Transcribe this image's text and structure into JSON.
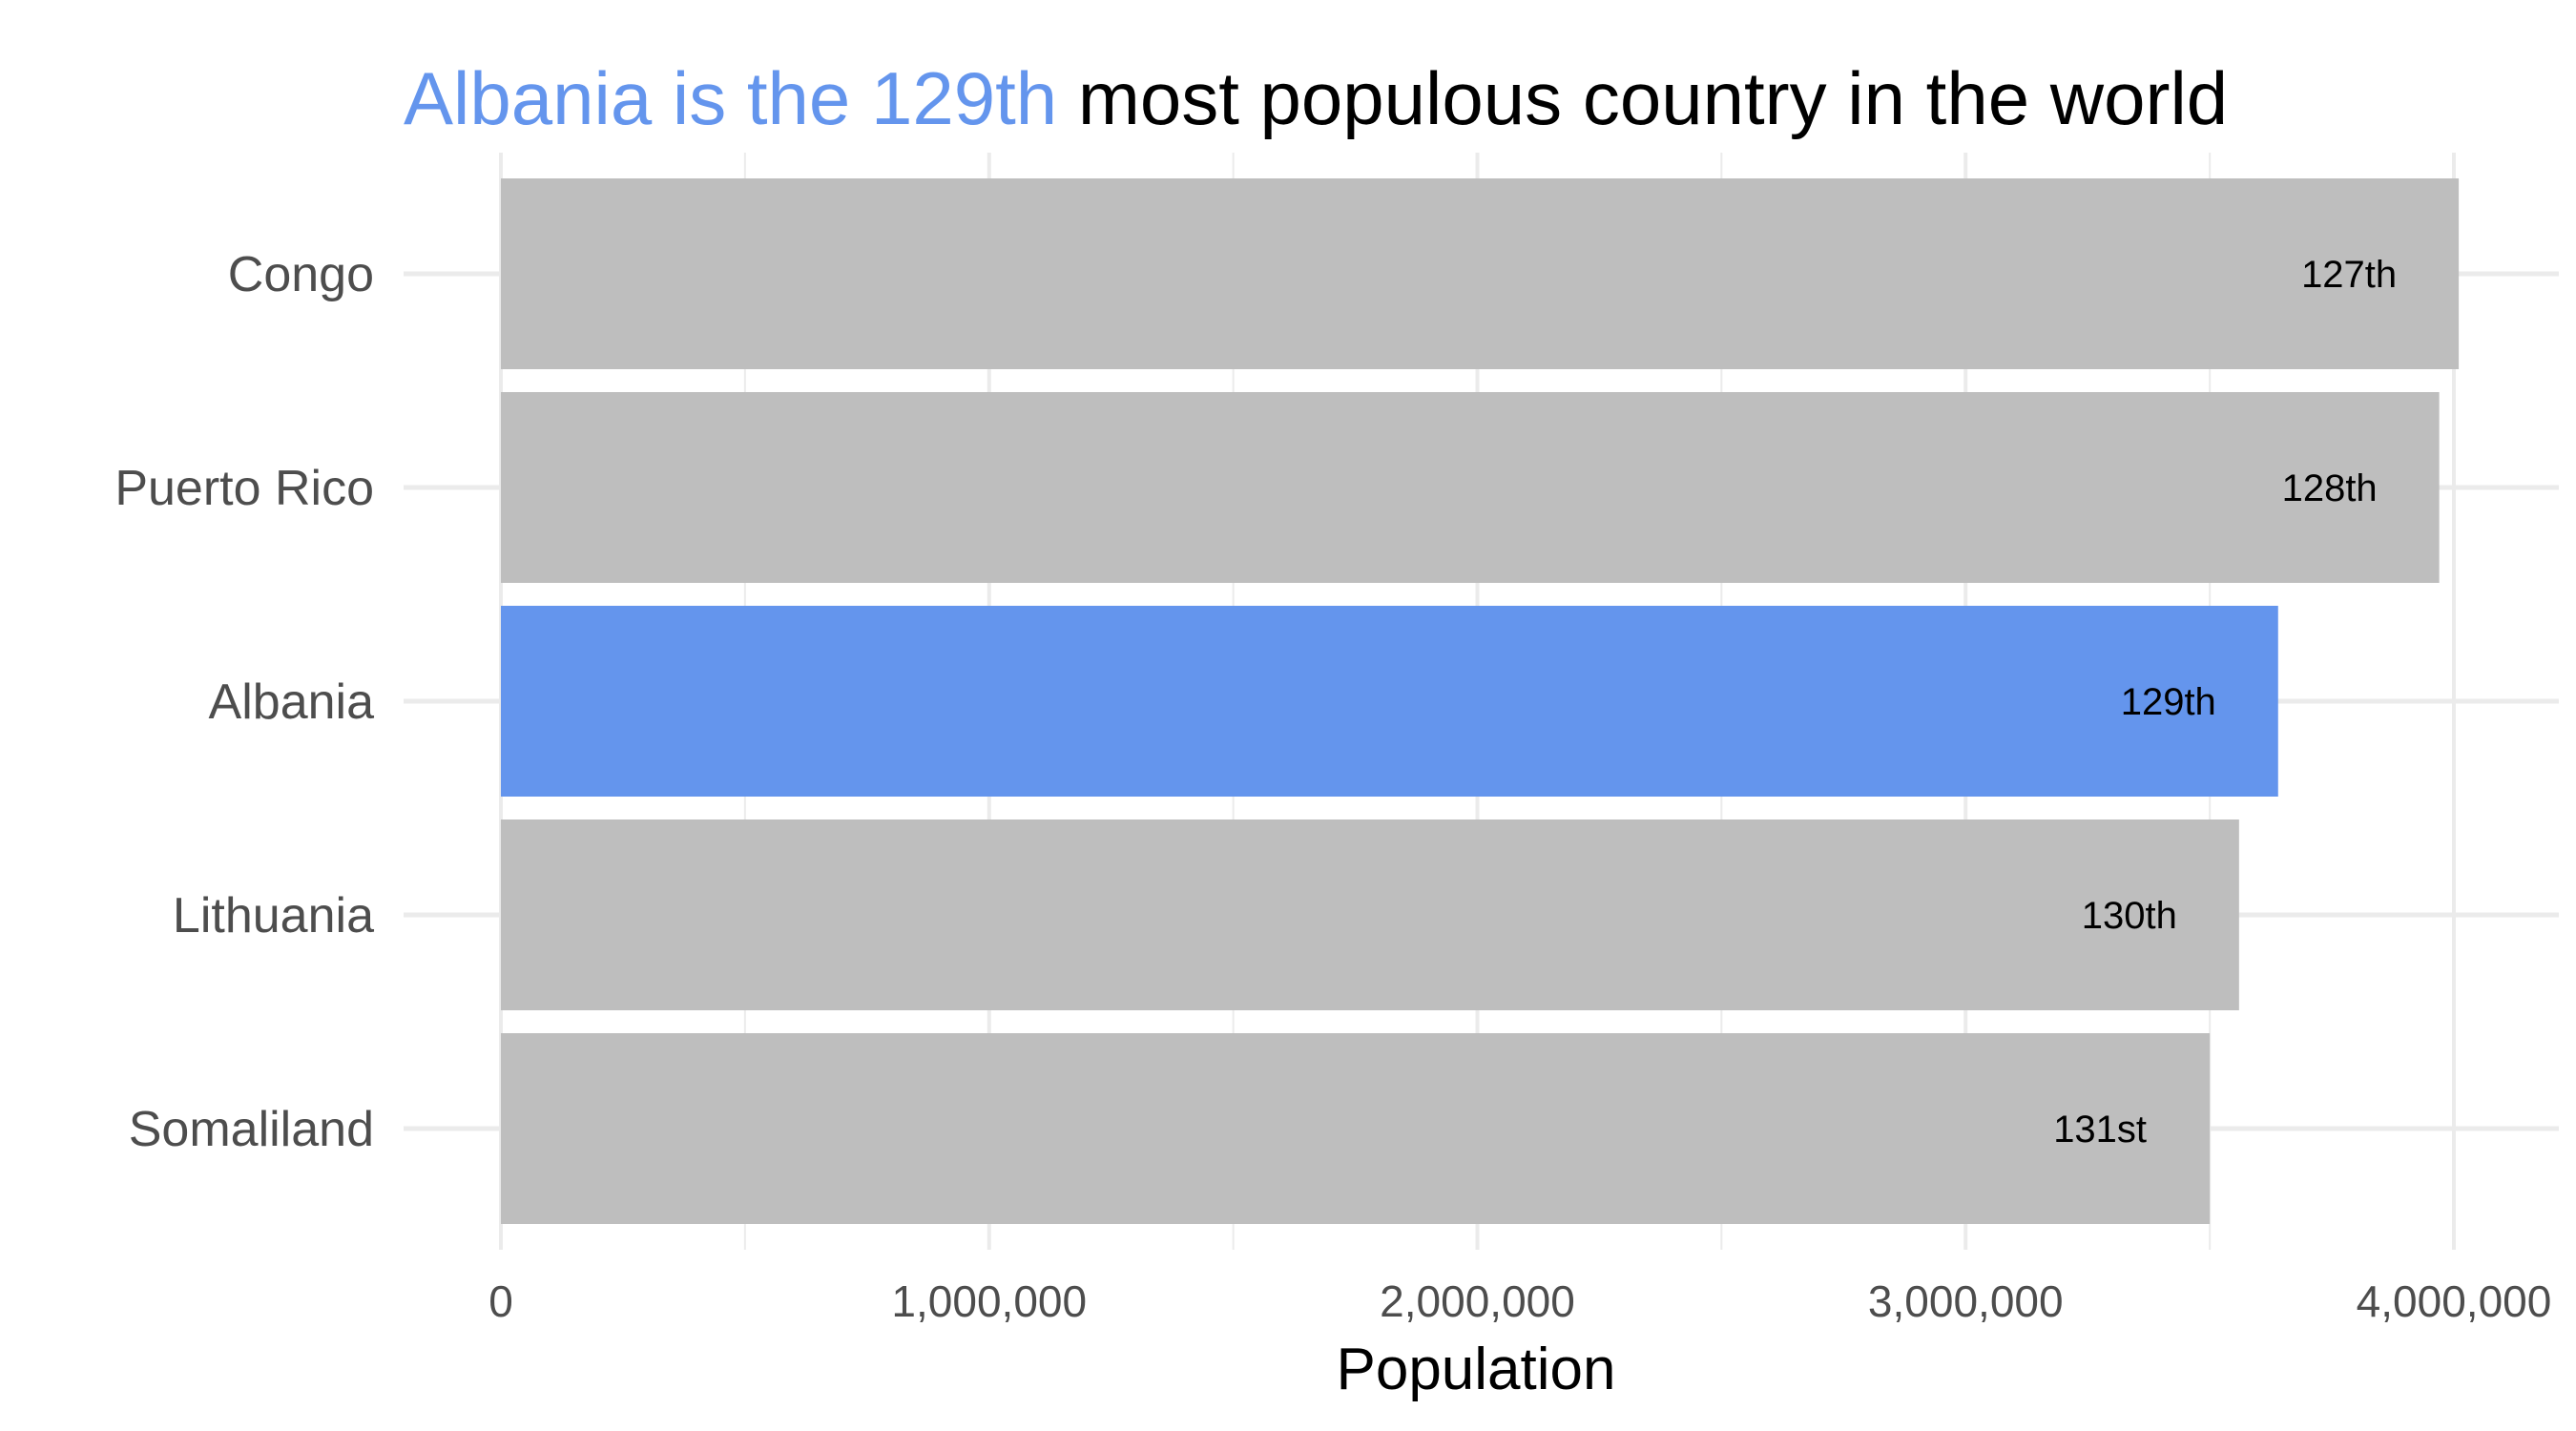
{
  "chart_data": {
    "type": "bar",
    "orientation": "horizontal",
    "title": {
      "highlight": "Albania is the 129th",
      "rest": " most populous country in the world"
    },
    "xlabel": "Population",
    "ylabel": "",
    "categories": [
      "Congo",
      "Puerto Rico",
      "Albania",
      "Lithuania",
      "Somaliland"
    ],
    "values": [
      4010000,
      3970000,
      3640000,
      3560000,
      3500000
    ],
    "data_labels": [
      "127th",
      "128th",
      "129th",
      "130th",
      "131st"
    ],
    "highlight_category": "Albania",
    "xlim": [
      0,
      4000000
    ],
    "x_ticks": [
      0,
      1000000,
      2000000,
      3000000,
      4000000
    ],
    "x_tick_labels": [
      "0",
      "1,000,000",
      "2,000,000",
      "3,000,000",
      "4,000,000"
    ],
    "grid": true,
    "legend": "none",
    "colors": {
      "bar": "#bebebe",
      "highlight": "#6495ed",
      "grid": "#ebebeb",
      "title": "#000000"
    }
  }
}
